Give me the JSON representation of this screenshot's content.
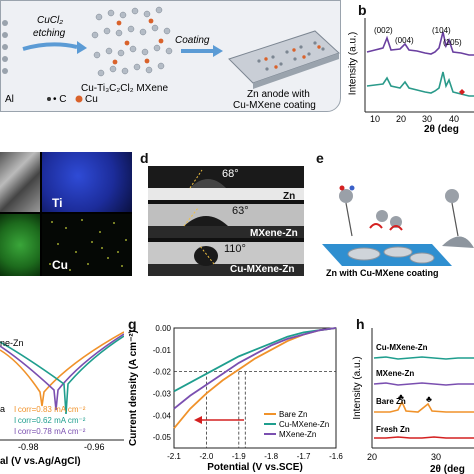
{
  "panel_letters": {
    "b": "b",
    "d": "d",
    "e": "e",
    "g": "g",
    "h": "h"
  },
  "panel_a": {
    "step1": "CuCl₂",
    "step1b": "etching",
    "step2": "Coating",
    "mxene_label": "Cu-Ti₃C₂Cl₂ MXene",
    "anode_label_1": "Zn anode with",
    "anode_label_2": "Cu-MXene coating",
    "legend_al": "Al",
    "legend_c": "• C",
    "legend_cu": "Cu"
  },
  "panel_b": {
    "ylabel": "Intensity (a.u.)",
    "xlabel": "2θ (deg",
    "peaks": [
      "(002)",
      "(004)",
      "(104)",
      "(105)"
    ],
    "ticks": [
      "10",
      "20",
      "30",
      "40"
    ],
    "colors": {
      "top": "#6a3fa0",
      "bottom": "#2a9a8a",
      "marker": "#d42020"
    }
  },
  "panel_c": {
    "ti": "Ti",
    "cu": "Cu"
  },
  "panel_d": {
    "angles": [
      "68°",
      "63°",
      "110°"
    ],
    "labels": [
      "Zn",
      "MXene-Zn",
      "Cu-MXene-Zn"
    ]
  },
  "panel_e": {
    "caption": "Zn with Cu-MXene coating"
  },
  "panel_f": {
    "legend_partial": "ne-Zn",
    "legend_a": "a",
    "icorr_1": "I corr=0.83 mA cm⁻²",
    "icorr_2": "I corr=0.62 mA cm⁻²",
    "icorr_3": "I corr=0.78 mA cm⁻²",
    "ticks": [
      "-0.98",
      "-0.96"
    ],
    "xlabel": "al (V vs.Ag/AgCl)"
  },
  "panel_g": {
    "ylabel": "Current density (A cm⁻²)",
    "xlabel": "Potential (V vs.SCE)",
    "yticks": [
      "0.00",
      "-0.01",
      "-0.02",
      "-0.03",
      "-0.04",
      "-0.05"
    ],
    "xticks": [
      "-2.1",
      "-2.0",
      "-1.9",
      "-1.8",
      "-1.7",
      "-1.6"
    ],
    "legend": [
      "Bare Zn",
      "Cu-MXene-Zn",
      "MXene-Zn"
    ],
    "colors": {
      "bare": "#f0922a",
      "cu": "#1f9e8e",
      "mx": "#7a4fb0",
      "arrow": "#d42020"
    }
  },
  "panel_h": {
    "ylabel": "Intensity (a.u.)",
    "xlabel": "2θ (deg",
    "curves": [
      "Cu-MXene-Zn",
      "MXene-Zn",
      "Bare Zn",
      "Fresh Zn"
    ],
    "marker": "♣",
    "ticks": [
      "20",
      "30"
    ],
    "colors": {
      "cu": "#1f9e8e",
      "mx": "#7a4fb0",
      "bare": "#f0922a",
      "fresh": "#d42020"
    }
  },
  "chart_data": [
    {
      "type": "line",
      "panel": "g",
      "xlabel": "Potential (V vs.SCE)",
      "ylabel": "Current density (A cm⁻²)",
      "xlim": [
        -2.1,
        -1.6
      ],
      "ylim": [
        -0.055,
        0.0
      ],
      "legend": "bottom-right",
      "series": [
        {
          "name": "Bare Zn",
          "x": [
            -2.1,
            -2.05,
            -2.0,
            -1.95,
            -1.9,
            -1.85,
            -1.8,
            -1.75,
            -1.7,
            -1.65,
            -1.6
          ],
          "y": [
            -0.046,
            -0.037,
            -0.03,
            -0.024,
            -0.019,
            -0.014,
            -0.01,
            -0.006,
            -0.003,
            -0.001,
            0.0
          ]
        },
        {
          "name": "Cu-MXene-Zn",
          "x": [
            -2.1,
            -2.05,
            -2.0,
            -1.95,
            -1.9,
            -1.85,
            -1.8,
            -1.75,
            -1.7,
            -1.65,
            -1.6
          ],
          "y": [
            -0.029,
            -0.025,
            -0.021,
            -0.017,
            -0.013,
            -0.01,
            -0.007,
            -0.004,
            -0.002,
            -0.001,
            0.0
          ]
        },
        {
          "name": "MXene-Zn",
          "x": [
            -2.1,
            -2.05,
            -2.0,
            -1.95,
            -1.9,
            -1.85,
            -1.8,
            -1.75,
            -1.7,
            -1.65,
            -1.6
          ],
          "y": [
            -0.037,
            -0.031,
            -0.026,
            -0.021,
            -0.016,
            -0.012,
            -0.008,
            -0.005,
            -0.003,
            -0.001,
            0.0
          ]
        }
      ]
    }
  ]
}
